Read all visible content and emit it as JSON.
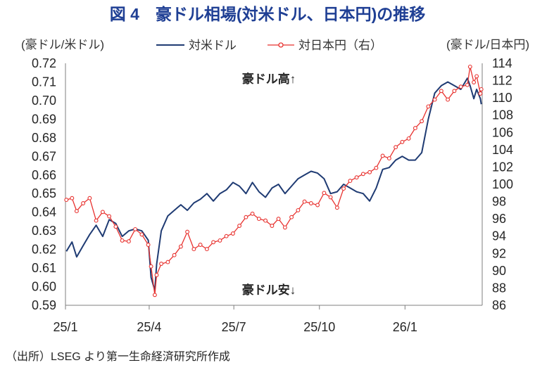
{
  "chart_data": {
    "type": "line",
    "title": "図 4　豪ドル相場(対米ドル、日本円)の推移",
    "ylabel": "(豪ドル/米ドル)",
    "y2label": "(豪ドル/日本円)",
    "xlabel": "",
    "xlim": [
      "2025-01-01",
      "2026-03-25"
    ],
    "ylim": [
      0.59,
      0.72
    ],
    "y2lim": [
      86,
      114
    ],
    "yticks": [
      0.59,
      0.6,
      0.61,
      0.62,
      0.63,
      0.64,
      0.65,
      0.66,
      0.67,
      0.68,
      0.69,
      0.7,
      0.71,
      0.72
    ],
    "y2ticks": [
      86,
      88,
      90,
      92,
      94,
      96,
      98,
      100,
      102,
      104,
      106,
      108,
      110,
      112,
      114
    ],
    "xticks": [
      {
        "label": "25/1",
        "date": "2025-01-01"
      },
      {
        "label": "25/4",
        "date": "2025-04-01"
      },
      {
        "label": "25/7",
        "date": "2025-07-01"
      },
      {
        "label": "25/10",
        "date": "2025-10-01"
      },
      {
        "label": "26/1",
        "date": "2026-01-01"
      }
    ],
    "grid": false,
    "legend_position": "top-center",
    "annotations": [
      "豪ドル高↑",
      "豪ドル安↓"
    ],
    "x": [
      "2025-01-02",
      "2025-01-08",
      "2025-01-13",
      "2025-01-20",
      "2025-01-27",
      "2025-02-03",
      "2025-02-10",
      "2025-02-17",
      "2025-02-24",
      "2025-03-03",
      "2025-03-10",
      "2025-03-17",
      "2025-03-24",
      "2025-03-31",
      "2025-04-03",
      "2025-04-07",
      "2025-04-09",
      "2025-04-14",
      "2025-04-21",
      "2025-04-28",
      "2025-05-05",
      "2025-05-12",
      "2025-05-19",
      "2025-05-26",
      "2025-06-02",
      "2025-06-09",
      "2025-06-16",
      "2025-06-23",
      "2025-06-30",
      "2025-07-07",
      "2025-07-14",
      "2025-07-21",
      "2025-07-28",
      "2025-08-04",
      "2025-08-11",
      "2025-08-18",
      "2025-08-25",
      "2025-09-01",
      "2025-09-08",
      "2025-09-15",
      "2025-09-22",
      "2025-09-29",
      "2025-10-06",
      "2025-10-13",
      "2025-10-20",
      "2025-10-27",
      "2025-11-03",
      "2025-11-10",
      "2025-11-17",
      "2025-11-24",
      "2025-12-01",
      "2025-12-08",
      "2025-12-15",
      "2025-12-22",
      "2025-12-29",
      "2026-01-05",
      "2026-01-12",
      "2026-01-19",
      "2026-01-26",
      "2026-02-02",
      "2026-02-09",
      "2026-02-16",
      "2026-02-23",
      "2026-03-02",
      "2026-03-09",
      "2026-03-12",
      "2026-03-16",
      "2026-03-19",
      "2026-03-23",
      "2026-03-24"
    ],
    "series": [
      {
        "name": "対米ドル",
        "axis": "left",
        "color": "#1f3b73",
        "marker": "none",
        "values": [
          0.619,
          0.624,
          0.616,
          0.622,
          0.628,
          0.633,
          0.627,
          0.636,
          0.634,
          0.627,
          0.63,
          0.631,
          0.63,
          0.625,
          0.605,
          0.598,
          0.612,
          0.63,
          0.638,
          0.641,
          0.644,
          0.641,
          0.645,
          0.647,
          0.65,
          0.646,
          0.65,
          0.652,
          0.656,
          0.654,
          0.65,
          0.656,
          0.651,
          0.648,
          0.653,
          0.655,
          0.65,
          0.654,
          0.658,
          0.66,
          0.662,
          0.661,
          0.658,
          0.65,
          0.651,
          0.655,
          0.653,
          0.651,
          0.65,
          0.646,
          0.653,
          0.663,
          0.664,
          0.668,
          0.67,
          0.668,
          0.668,
          0.672,
          0.69,
          0.704,
          0.708,
          0.71,
          0.708,
          0.706,
          0.712,
          0.708,
          0.701,
          0.706,
          0.701,
          0.698
        ]
      },
      {
        "name": "対日本円（右）",
        "axis": "right",
        "color": "#e8322f",
        "marker": "circle",
        "values": [
          98.2,
          98.4,
          96.9,
          97.8,
          98.4,
          95.8,
          96.8,
          96.3,
          95.1,
          93.5,
          93.4,
          94.8,
          94.2,
          93.0,
          90.5,
          87.2,
          89.5,
          90.8,
          91.0,
          91.8,
          92.8,
          94.5,
          92.5,
          93.0,
          92.5,
          93.3,
          93.5,
          94.0,
          94.3,
          95.2,
          96.2,
          96.6,
          96.0,
          95.8,
          95.2,
          96.0,
          95.0,
          96.2,
          97.0,
          98.0,
          97.8,
          97.6,
          99.0,
          98.5,
          97.3,
          99.5,
          100.4,
          100.8,
          101.2,
          101.4,
          101.9,
          103.3,
          103.0,
          104.3,
          104.9,
          105.3,
          106.5,
          107.3,
          109.0,
          109.8,
          110.8,
          109.8,
          110.8,
          111.3,
          111.5,
          113.6,
          111.8,
          112.5,
          110.5,
          111.0
        ]
      }
    ],
    "source": "（出所）LSEG より第一生命経済研究所作成"
  }
}
